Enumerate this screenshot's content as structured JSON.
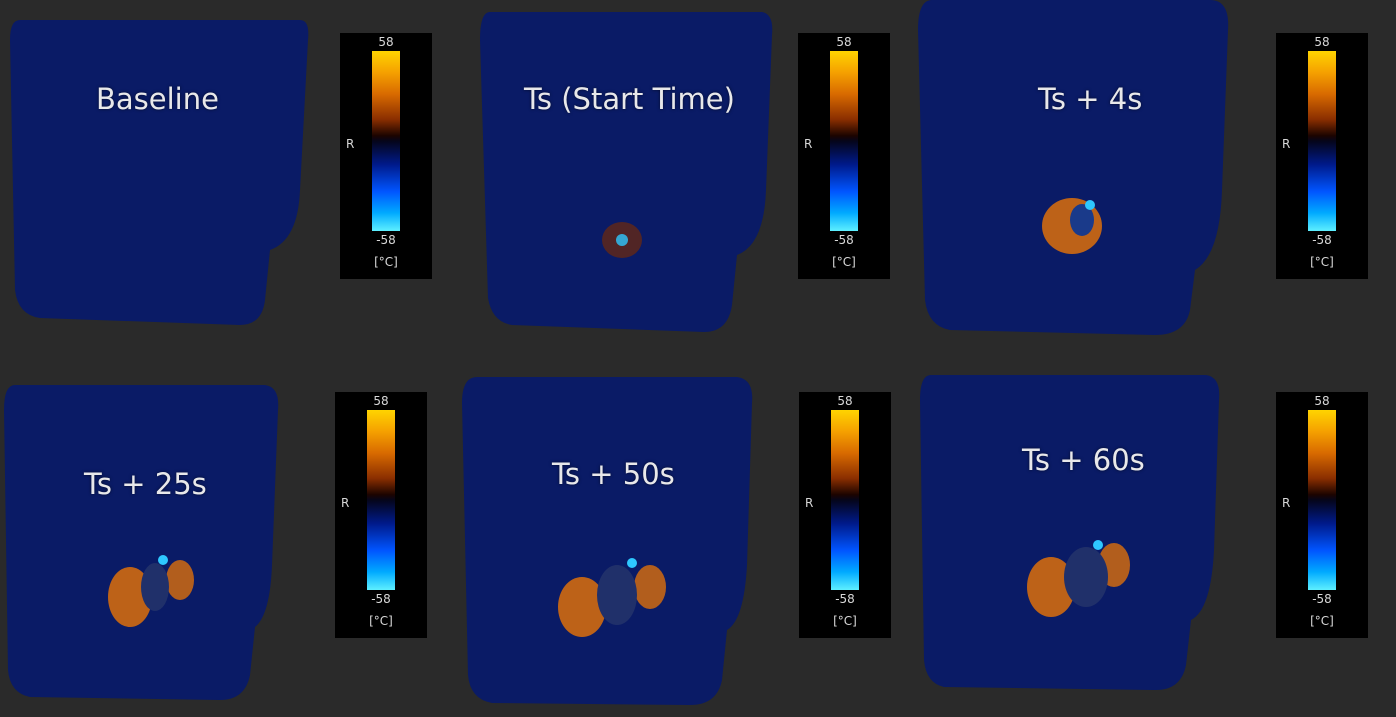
{
  "panels": [
    {
      "title": "Baseline"
    },
    {
      "title": "Ts (Start Time)"
    },
    {
      "title": "Ts + 4s"
    },
    {
      "title": "Ts + 25s"
    },
    {
      "title": "Ts + 50s"
    },
    {
      "title": "Ts + 60s"
    }
  ],
  "colorbar": {
    "max": "58",
    "min": "-58",
    "unit": "[°C]",
    "side": "R"
  },
  "colors": {
    "phantom": "#0a1b66",
    "background": "#2a2a2a",
    "hot": "#e07a10",
    "cold": "#2ec8ff"
  }
}
